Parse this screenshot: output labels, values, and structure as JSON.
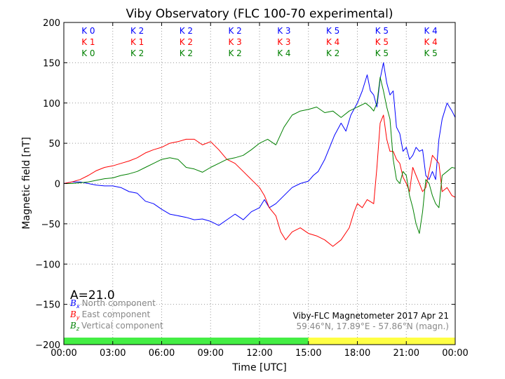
{
  "chart_data": {
    "type": "line",
    "title": "Viby Observatory (FLC 100-70 experimental)",
    "xlabel": "Time [UTC]",
    "ylabel": "Magnetic field [nT]",
    "x_ticks": [
      "00:00",
      "03:00",
      "06:00",
      "09:00",
      "12:00",
      "15:00",
      "18:00",
      "21:00",
      "00:00"
    ],
    "xlim_hours": [
      0,
      24
    ],
    "ylim": [
      -200,
      200
    ],
    "y_ticks": [
      200,
      150,
      100,
      50,
      0,
      -50,
      -100,
      -150,
      -200
    ],
    "y_tick_labels": [
      "200",
      "150",
      "100",
      "50",
      "0",
      "−50",
      "−100",
      "−150",
      "−200"
    ],
    "grid": true,
    "k_index_columns": [
      {
        "x": "0",
        "y": "1",
        "z": "0"
      },
      {
        "x": "2",
        "y": "1",
        "z": "2"
      },
      {
        "x": "2",
        "y": "2",
        "z": "2"
      },
      {
        "x": "2",
        "y": "3",
        "z": "2"
      },
      {
        "x": "3",
        "y": "3",
        "z": "4"
      },
      {
        "x": "5",
        "y": "4",
        "z": "2"
      },
      {
        "x": "5",
        "y": "5",
        "z": "5"
      },
      {
        "x": "4",
        "y": "4",
        "z": "5"
      }
    ],
    "k_prefix": "K",
    "a_index": "A=21.0",
    "legend": [
      {
        "symbol": "B",
        "sub": "x",
        "label": "North component",
        "color": "#0000ff"
      },
      {
        "symbol": "B",
        "sub": "y",
        "label": "East component",
        "color": "#ff0000"
      },
      {
        "symbol": "B",
        "sub": "z",
        "label": "Vertical component",
        "color": "#008000"
      }
    ],
    "info_title": "Viby-FLC Magnetometer 2017 Apr 21",
    "info_coords": "59.46°N, 17.89°E - 57.86°N (magn.)",
    "status_bar": [
      {
        "from": 0,
        "to": 15,
        "color": "#44ee44"
      },
      {
        "from": 15,
        "to": 24,
        "color": "#ffff44"
      }
    ],
    "colors": {
      "x": "#0000ff",
      "y": "#ff0000",
      "z": "#008000",
      "grid": "#999999",
      "info_coords": "#888888"
    },
    "series": [
      {
        "name": "North component",
        "key": "x",
        "color": "#0000ff",
        "points": [
          [
            0,
            0
          ],
          [
            0.5,
            2
          ],
          [
            1,
            2
          ],
          [
            1.5,
            0
          ],
          [
            2,
            -2
          ],
          [
            2.5,
            -3
          ],
          [
            3,
            -3
          ],
          [
            3.5,
            -5
          ],
          [
            4,
            -10
          ],
          [
            4.5,
            -12
          ],
          [
            5,
            -22
          ],
          [
            5.5,
            -25
          ],
          [
            6,
            -32
          ],
          [
            6.5,
            -38
          ],
          [
            7,
            -40
          ],
          [
            7.5,
            -42
          ],
          [
            8,
            -45
          ],
          [
            8.5,
            -44
          ],
          [
            9,
            -47
          ],
          [
            9.5,
            -52
          ],
          [
            10,
            -45
          ],
          [
            10.5,
            -38
          ],
          [
            11,
            -45
          ],
          [
            11.5,
            -35
          ],
          [
            12,
            -30
          ],
          [
            12.3,
            -20
          ],
          [
            12.6,
            -30
          ],
          [
            13,
            -25
          ],
          [
            13.5,
            -15
          ],
          [
            14,
            -5
          ],
          [
            14.5,
            0
          ],
          [
            15,
            3
          ],
          [
            15.3,
            10
          ],
          [
            15.6,
            15
          ],
          [
            16,
            30
          ],
          [
            16.3,
            45
          ],
          [
            16.6,
            60
          ],
          [
            17,
            75
          ],
          [
            17.3,
            65
          ],
          [
            17.6,
            85
          ],
          [
            18,
            100
          ],
          [
            18.3,
            115
          ],
          [
            18.6,
            135
          ],
          [
            18.8,
            115
          ],
          [
            19,
            110
          ],
          [
            19.2,
            95
          ],
          [
            19.4,
            130
          ],
          [
            19.6,
            150
          ],
          [
            19.8,
            125
          ],
          [
            20,
            110
          ],
          [
            20.2,
            115
          ],
          [
            20.4,
            70
          ],
          [
            20.6,
            62
          ],
          [
            20.8,
            40
          ],
          [
            21,
            45
          ],
          [
            21.2,
            30
          ],
          [
            21.4,
            35
          ],
          [
            21.6,
            45
          ],
          [
            21.8,
            40
          ],
          [
            22,
            42
          ],
          [
            22.2,
            10
          ],
          [
            22.4,
            5
          ],
          [
            22.6,
            15
          ],
          [
            22.8,
            5
          ],
          [
            23,
            55
          ],
          [
            23.2,
            80
          ],
          [
            23.5,
            100
          ],
          [
            23.8,
            90
          ],
          [
            24,
            82
          ]
        ]
      },
      {
        "name": "East component",
        "key": "y",
        "color": "#ff0000",
        "points": [
          [
            0,
            0
          ],
          [
            0.5,
            2
          ],
          [
            1,
            5
          ],
          [
            1.5,
            10
          ],
          [
            2,
            16
          ],
          [
            2.5,
            20
          ],
          [
            3,
            22
          ],
          [
            3.5,
            25
          ],
          [
            4,
            28
          ],
          [
            4.5,
            32
          ],
          [
            5,
            38
          ],
          [
            5.5,
            42
          ],
          [
            6,
            45
          ],
          [
            6.5,
            50
          ],
          [
            7,
            52
          ],
          [
            7.5,
            55
          ],
          [
            8,
            55
          ],
          [
            8.5,
            48
          ],
          [
            9,
            52
          ],
          [
            9.5,
            42
          ],
          [
            10,
            30
          ],
          [
            10.5,
            25
          ],
          [
            11,
            15
          ],
          [
            11.5,
            5
          ],
          [
            12,
            -5
          ],
          [
            12.3,
            -15
          ],
          [
            12.6,
            -30
          ],
          [
            13,
            -40
          ],
          [
            13.3,
            -60
          ],
          [
            13.6,
            -70
          ],
          [
            14,
            -60
          ],
          [
            14.5,
            -55
          ],
          [
            15,
            -62
          ],
          [
            15.5,
            -65
          ],
          [
            16,
            -70
          ],
          [
            16.5,
            -78
          ],
          [
            17,
            -70
          ],
          [
            17.5,
            -55
          ],
          [
            17.8,
            -35
          ],
          [
            18,
            -25
          ],
          [
            18.3,
            -30
          ],
          [
            18.6,
            -20
          ],
          [
            19,
            -25
          ],
          [
            19.2,
            20
          ],
          [
            19.4,
            75
          ],
          [
            19.6,
            85
          ],
          [
            19.8,
            55
          ],
          [
            20,
            40
          ],
          [
            20.2,
            40
          ],
          [
            20.4,
            30
          ],
          [
            20.6,
            25
          ],
          [
            20.8,
            8
          ],
          [
            21,
            0
          ],
          [
            21.2,
            -10
          ],
          [
            21.4,
            20
          ],
          [
            21.6,
            10
          ],
          [
            21.8,
            0
          ],
          [
            22,
            -10
          ],
          [
            22.2,
            -5
          ],
          [
            22.4,
            15
          ],
          [
            22.6,
            35
          ],
          [
            22.8,
            30
          ],
          [
            23,
            25
          ],
          [
            23.2,
            -10
          ],
          [
            23.5,
            -5
          ],
          [
            23.8,
            -15
          ],
          [
            24,
            -17
          ]
        ]
      },
      {
        "name": "Vertical component",
        "key": "z",
        "color": "#008000",
        "points": [
          [
            0,
            0
          ],
          [
            0.5,
            0
          ],
          [
            1,
            1
          ],
          [
            1.5,
            2
          ],
          [
            2,
            4
          ],
          [
            2.5,
            6
          ],
          [
            3,
            7
          ],
          [
            3.5,
            10
          ],
          [
            4,
            12
          ],
          [
            4.5,
            15
          ],
          [
            5,
            20
          ],
          [
            5.5,
            25
          ],
          [
            6,
            30
          ],
          [
            6.5,
            32
          ],
          [
            7,
            30
          ],
          [
            7.5,
            20
          ],
          [
            8,
            18
          ],
          [
            8.5,
            14
          ],
          [
            9,
            20
          ],
          [
            9.5,
            25
          ],
          [
            10,
            30
          ],
          [
            10.5,
            32
          ],
          [
            11,
            35
          ],
          [
            11.5,
            42
          ],
          [
            12,
            50
          ],
          [
            12.5,
            55
          ],
          [
            13,
            48
          ],
          [
            13.5,
            70
          ],
          [
            14,
            85
          ],
          [
            14.5,
            90
          ],
          [
            15,
            92
          ],
          [
            15.5,
            95
          ],
          [
            16,
            88
          ],
          [
            16.5,
            90
          ],
          [
            17,
            82
          ],
          [
            17.5,
            90
          ],
          [
            18,
            95
          ],
          [
            18.5,
            100
          ],
          [
            18.8,
            95
          ],
          [
            19,
            90
          ],
          [
            19.2,
            100
          ],
          [
            19.4,
            132
          ],
          [
            19.6,
            115
          ],
          [
            19.8,
            95
          ],
          [
            20,
            80
          ],
          [
            20.2,
            30
          ],
          [
            20.4,
            5
          ],
          [
            20.6,
            0
          ],
          [
            20.8,
            15
          ],
          [
            21,
            10
          ],
          [
            21.2,
            -15
          ],
          [
            21.4,
            -30
          ],
          [
            21.6,
            -50
          ],
          [
            21.8,
            -62
          ],
          [
            22,
            -35
          ],
          [
            22.2,
            5
          ],
          [
            22.4,
            0
          ],
          [
            22.6,
            -15
          ],
          [
            22.8,
            -25
          ],
          [
            23,
            -30
          ],
          [
            23.2,
            10
          ],
          [
            23.5,
            15
          ],
          [
            23.8,
            20
          ],
          [
            24,
            19
          ]
        ]
      }
    ]
  }
}
